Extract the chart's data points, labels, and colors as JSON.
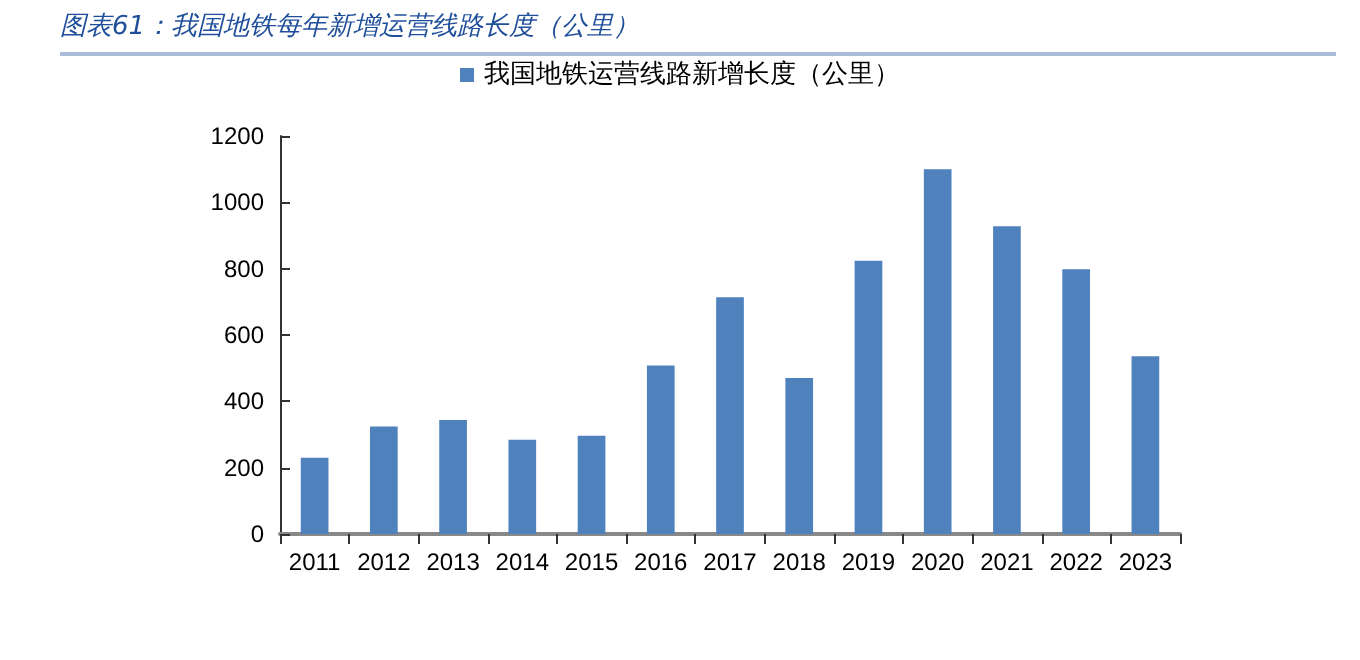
{
  "chart_data": {
    "type": "bar",
    "title": "图表61：我国地铁每年新增运营线路长度（公里）",
    "categories": [
      "2011",
      "2012",
      "2013",
      "2014",
      "2015",
      "2016",
      "2017",
      "2018",
      "2019",
      "2020",
      "2021",
      "2022",
      "2023"
    ],
    "series": [
      {
        "name": "我国地铁运营线路新增长度（公里）",
        "color": "#4f81bd",
        "values": [
          230,
          324,
          344,
          284,
          296,
          508,
          714,
          470,
          824,
          1100,
          928,
          798,
          536
        ]
      }
    ],
    "ylim": [
      0,
      1200
    ],
    "yticks": [
      0,
      200,
      400,
      600,
      800,
      1000,
      1200
    ],
    "grid": false,
    "legend": "top"
  }
}
